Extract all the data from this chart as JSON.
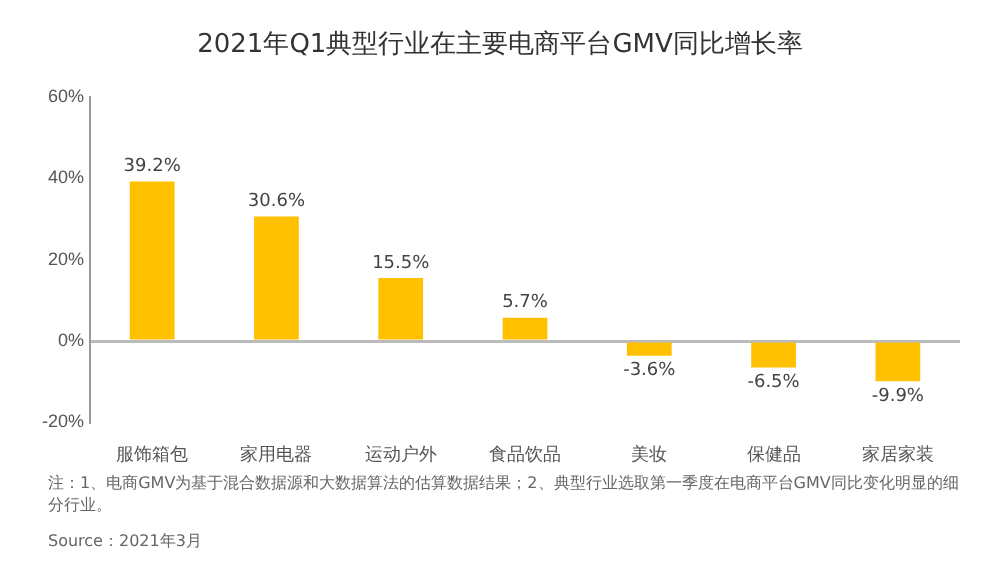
{
  "chart_data": {
    "type": "bar",
    "title": "2021年Q1典型行业在主要电商平台GMV同比增长率",
    "categories": [
      "服饰箱包",
      "家用电器",
      "运动户外",
      "食品饮品",
      "美妆",
      "保健品",
      "家居家装"
    ],
    "values": [
      39.2,
      30.6,
      15.5,
      5.7,
      -3.6,
      -6.5,
      -9.9
    ],
    "value_labels": [
      "39.2%",
      "30.6%",
      "15.5%",
      "5.7%",
      "-3.6%",
      "-6.5%",
      "-9.9%"
    ],
    "color": "#ffc000",
    "ylim": [
      -20,
      60
    ],
    "yticks": [
      {
        "value": -20,
        "label": "-20%"
      },
      {
        "value": 0,
        "label": "0%"
      },
      {
        "value": 20,
        "label": "20%"
      },
      {
        "value": 40,
        "label": "40%"
      },
      {
        "value": 60,
        "label": "60%"
      }
    ],
    "annotations": [
      "注：1、电商GMV为基于混合数据源和大数据算法的估算数据结果；2、典型行业选取第一季度在电商平台GMV同比变化明显的细分行业。",
      "Source：2021年3月"
    ]
  }
}
